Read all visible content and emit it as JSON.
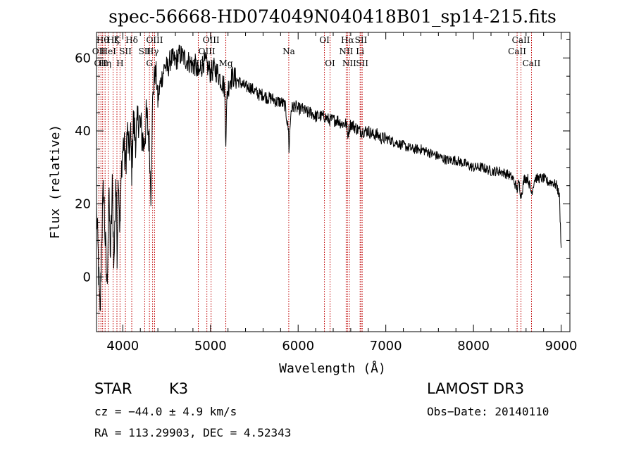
{
  "chart_data": {
    "type": "line",
    "title": "spec-56668-HD074049N040418B01_sp14-215.fits",
    "xlabel": "Wavelength (Å)",
    "ylabel": "Flux (relative)",
    "xlim": [
      3700,
      9100
    ],
    "ylim": [
      -15,
      67
    ],
    "x_ticks": [
      4000,
      5000,
      6000,
      7000,
      8000,
      9000
    ],
    "y_ticks": [
      0,
      20,
      40,
      60
    ],
    "series": [
      {
        "name": "spectrum",
        "x": [
          3700,
          3720,
          3740,
          3760,
          3780,
          3800,
          3820,
          3840,
          3860,
          3880,
          3900,
          3920,
          3935,
          3950,
          3968,
          3990,
          4010,
          4030,
          4050,
          4070,
          4090,
          4102,
          4120,
          4150,
          4180,
          4210,
          4240,
          4270,
          4300,
          4320,
          4340,
          4360,
          4380,
          4400,
          4420,
          4450,
          4480,
          4510,
          4550,
          4600,
          4650,
          4700,
          4750,
          4800,
          4830,
          4861,
          4890,
          4920,
          4960,
          5000,
          5040,
          5080,
          5120,
          5160,
          5175,
          5190,
          5220,
          5260,
          5300,
          5350,
          5400,
          5450,
          5500,
          5550,
          5600,
          5650,
          5700,
          5750,
          5800,
          5850,
          5890,
          5895,
          5920,
          5960,
          6000,
          6050,
          6100,
          6150,
          6200,
          6250,
          6300,
          6350,
          6400,
          6450,
          6500,
          6550,
          6563,
          6600,
          6650,
          6700,
          6750,
          6800,
          6850,
          6900,
          6950,
          7000,
          7100,
          7200,
          7300,
          7400,
          7500,
          7600,
          7700,
          7800,
          7900,
          8000,
          8100,
          8200,
          8300,
          8400,
          8450,
          8498,
          8520,
          8542,
          8580,
          8620,
          8662,
          8700,
          8750,
          8800,
          8850,
          8900,
          8950,
          8980,
          9000
        ],
        "y": [
          18,
          5,
          -12,
          12,
          25,
          10,
          -3,
          22,
          6,
          24,
          3,
          28,
          8,
          30,
          12,
          33,
          37,
          30,
          40,
          34,
          38,
          30,
          42,
          38,
          44,
          40,
          36,
          44,
          38,
          22,
          48,
          55,
          56,
          48,
          52,
          55,
          58,
          57,
          60,
          59,
          61,
          60,
          59,
          58,
          58,
          55,
          57,
          59,
          58,
          56,
          57,
          56,
          54,
          52,
          38,
          50,
          54,
          55,
          54,
          53,
          52,
          52,
          51,
          50,
          50,
          49,
          49,
          48,
          48,
          47,
          40,
          35,
          46,
          47,
          46,
          46,
          45,
          45,
          44,
          44,
          44,
          43,
          43,
          43,
          42,
          42,
          39,
          42,
          41,
          40,
          40,
          40,
          39,
          39,
          38,
          38,
          37,
          36,
          35,
          35,
          34,
          33,
          32,
          32,
          31,
          30,
          30,
          29,
          29,
          28,
          27,
          24,
          26,
          22,
          27,
          27,
          23,
          27,
          27,
          27,
          26,
          26,
          25,
          22,
          8
        ]
      }
    ],
    "lines": [
      {
        "wavelength": 3727,
        "label": "OII",
        "row": 2
      },
      {
        "wavelength": 3750,
        "label": "OII",
        "row": 3
      },
      {
        "wavelength": 3770,
        "label": "Hθ",
        "row": 1
      },
      {
        "wavelength": 3798,
        "label": "Hη",
        "row": 3
      },
      {
        "wavelength": 3835,
        "label": "HeI",
        "row": 2
      },
      {
        "wavelength": 3889,
        "label": "Hζ",
        "row": 1
      },
      {
        "wavelength": 3933,
        "label": "K",
        "row": 1
      },
      {
        "wavelength": 3968,
        "label": "H",
        "row": 3
      },
      {
        "wavelength": 4030,
        "label": "SII",
        "row": 2
      },
      {
        "wavelength": 4102,
        "label": "Hδ",
        "row": 1
      },
      {
        "wavelength": 4250,
        "label": "SII",
        "row": 2
      },
      {
        "wavelength": 4304,
        "label": "G",
        "row": 3
      },
      {
        "wavelength": 4340,
        "label": "Hγ",
        "row": 2
      },
      {
        "wavelength": 4363,
        "label": "OIII",
        "row": 1
      },
      {
        "wavelength": 4861,
        "label": "Hβ",
        "row": 3
      },
      {
        "wavelength": 4959,
        "label": "OIII",
        "row": 2
      },
      {
        "wavelength": 5007,
        "label": "OIII",
        "row": 1
      },
      {
        "wavelength": 5175,
        "label": "Mg",
        "row": 3
      },
      {
        "wavelength": 5893,
        "label": "Na",
        "row": 2
      },
      {
        "wavelength": 6300,
        "label": "OI",
        "row": 1
      },
      {
        "wavelength": 6364,
        "label": "OI",
        "row": 3
      },
      {
        "wavelength": 6548,
        "label": "NII",
        "row": 2
      },
      {
        "wavelength": 6563,
        "label": "Hα",
        "row": 1
      },
      {
        "wavelength": 6584,
        "label": "NII",
        "row": 3
      },
      {
        "wavelength": 6707,
        "label": "Li",
        "row": 2
      },
      {
        "wavelength": 6717,
        "label": "SII",
        "row": 1
      },
      {
        "wavelength": 6731,
        "label": "SII",
        "row": 3
      },
      {
        "wavelength": 8498,
        "label": "CaII",
        "row": 2
      },
      {
        "wavelength": 8542,
        "label": "CaII",
        "row": 1
      },
      {
        "wavelength": 8662,
        "label": "CaII",
        "row": 3
      }
    ],
    "line_color": "#c00000"
  },
  "info": {
    "class": "STAR",
    "subclass": "K3",
    "survey": "LAMOST DR3",
    "cz": "cz = −44.0 ± 4.9 km/s",
    "obs_date": "Obs−Date: 20140110",
    "coords": "RA = 113.29903, DEC =   4.52343"
  }
}
